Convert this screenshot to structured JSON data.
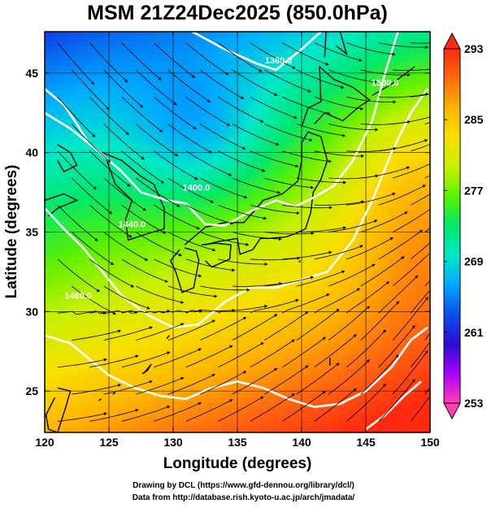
{
  "title": "MSM 21Z24Dec2025 (850.0hPa)",
  "x_axis": {
    "label": "Longitude (degrees)",
    "ticks": [
      "120",
      "125",
      "130",
      "135",
      "140",
      "145",
      "150"
    ],
    "range": [
      120,
      150
    ]
  },
  "y_axis": {
    "label": "Latitude  (degrees)",
    "ticks": [
      "25",
      "30",
      "35",
      "40",
      "45"
    ],
    "range": [
      22.4,
      47.6
    ]
  },
  "colorbar": {
    "ticks": [
      "293",
      "285",
      "277",
      "269",
      "261",
      "253"
    ],
    "range": [
      253,
      293
    ],
    "colors": [
      "#ff3fb4",
      "#a800ff",
      "#2a0fd0",
      "#0b4fea",
      "#00a8ff",
      "#00e8c8",
      "#00e86a",
      "#5cf000",
      "#c8f000",
      "#f7e000",
      "#ffb400",
      "#ff6a10",
      "#ff2a10"
    ]
  },
  "contours": [
    {
      "label": "1360.0",
      "lon": 138.2,
      "lat": 45.6
    },
    {
      "label": "1400.0",
      "lon": 131.8,
      "lat": 37.6
    },
    {
      "label": "1440.0",
      "lon": 126.8,
      "lat": 35.3
    },
    {
      "label": "1500.0",
      "lon": 146.5,
      "lat": 44.2
    },
    {
      "label": "1460.0",
      "lon": 122.6,
      "lat": 30.8
    }
  ],
  "credits": {
    "line1": "Drawing by DCL (https://www.gfd-dennou.org/library/dcl/)",
    "line2": "Data from http://database.rish.kyoto-u.ac.jp/arch/jmadata/"
  },
  "icons": {
    "streamlines": "arrow-streamline-icon",
    "coastline": "coastline-icon"
  }
}
